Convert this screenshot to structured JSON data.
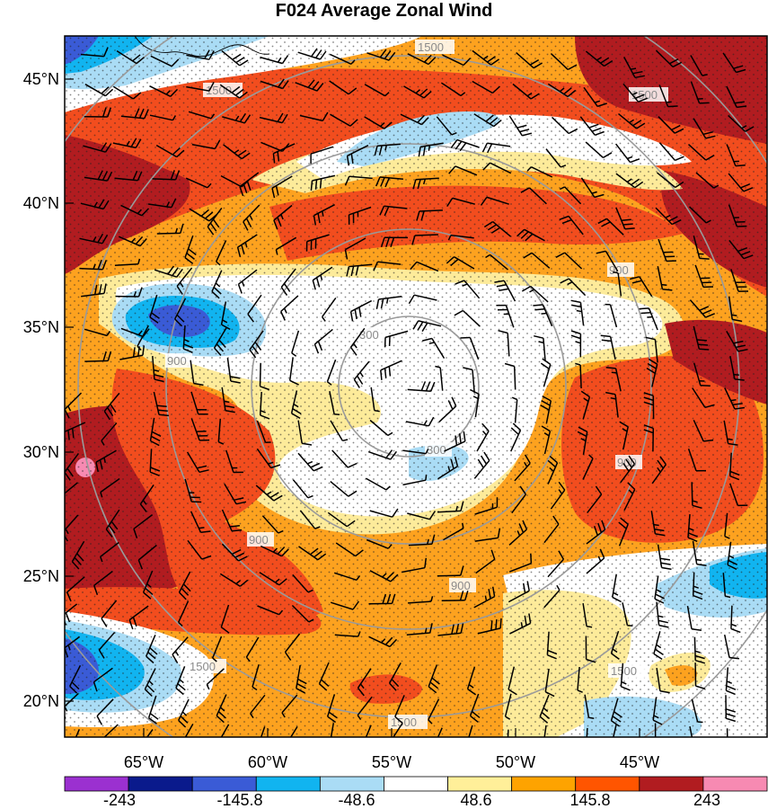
{
  "title": "F024 Average Zonal Wind",
  "lat_labels": [
    "45°N",
    "40°N",
    "35°N",
    "30°N",
    "25°N",
    "20°N"
  ],
  "lon_labels": [
    "65°W",
    "60°W",
    "55°W",
    "50°W",
    "45°W"
  ],
  "contour_labels": [
    "1500",
    "1500",
    "900",
    "900",
    "300",
    "300",
    "900",
    "900",
    "900",
    "1500",
    "1500",
    "1500",
    "1500"
  ],
  "colorbar": {
    "labels": [
      "-243",
      "-145.8",
      "-48.6",
      "48.6",
      "145.8",
      "243"
    ],
    "colors": [
      "#9b30d0",
      "#0a1a8c",
      "#3a5bd6",
      "#11b4f0",
      "#aadcf5",
      "#ffffff",
      "#ffef99",
      "#fea300",
      "#ff5500",
      "#b11c20",
      "#f78ab2"
    ]
  },
  "palette": {
    "darkred": "#b11c20",
    "red": "#f24d1e",
    "orange": "#fda21f",
    "yellow": "#fdeb9a",
    "white": "#ffffff",
    "lightblue": "#aadcf5",
    "cyan": "#11b4f0",
    "blue": "#3a5bd6",
    "navy": "#0a1a8c",
    "pink": "#f78ab2"
  }
}
